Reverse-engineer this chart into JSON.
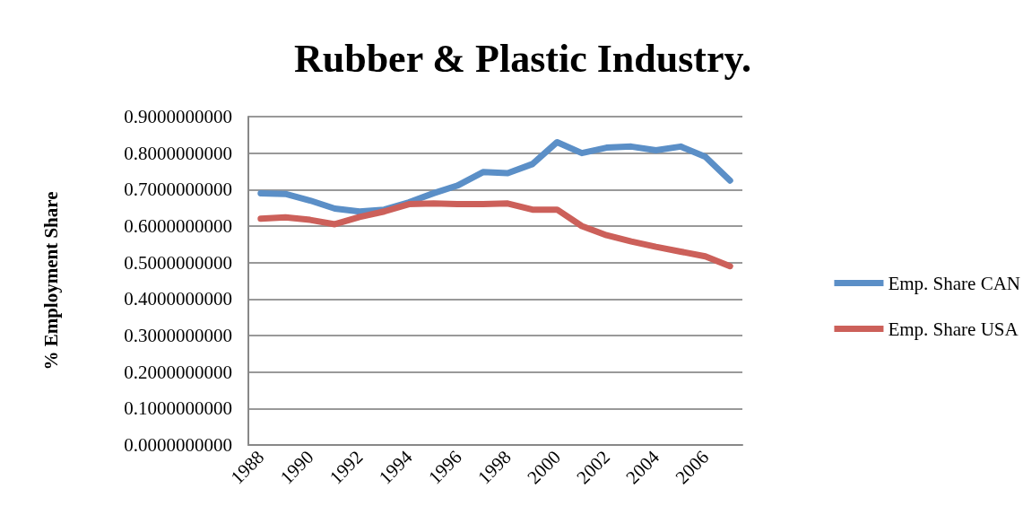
{
  "chart_data": {
    "type": "line",
    "title": "Rubber & Plastic Industry.",
    "ylabel": "% Employment Share",
    "categories": [
      "1988",
      null,
      "1990",
      null,
      "1992",
      null,
      "1994",
      null,
      "1996",
      null,
      "1998",
      null,
      "2000",
      null,
      "2002",
      null,
      "2004",
      null,
      "2006",
      null
    ],
    "series": [
      {
        "name": "Emp. Share CAN",
        "color": "#5b8fc7",
        "values": [
          0.69,
          0.688,
          0.67,
          0.648,
          0.64,
          0.645,
          0.665,
          0.69,
          0.712,
          0.748,
          0.745,
          0.77,
          0.83,
          0.8,
          0.815,
          0.818,
          0.808,
          0.818,
          0.79,
          0.725
        ]
      },
      {
        "name": "Emp. Share USA",
        "color": "#cc605a",
        "values": [
          0.62,
          0.624,
          0.617,
          0.605,
          0.625,
          0.64,
          0.66,
          0.662,
          0.66,
          0.66,
          0.662,
          0.645,
          0.645,
          0.6,
          0.575,
          0.558,
          0.543,
          0.53,
          0.517,
          0.49
        ]
      }
    ],
    "ylim": [
      0,
      0.9
    ],
    "yticks": [
      {
        "value": 0,
        "label": "0.0000000000"
      },
      {
        "value": 0.1,
        "label": "0.1000000000"
      },
      {
        "value": 0.2,
        "label": "0.2000000000"
      },
      {
        "value": 0.3,
        "label": "0.3000000000"
      },
      {
        "value": 0.4,
        "label": "0.4000000000"
      },
      {
        "value": 0.5,
        "label": "0.5000000000"
      },
      {
        "value": 0.6,
        "label": "0.6000000000"
      },
      {
        "value": 0.7,
        "label": "0.7000000000"
      },
      {
        "value": 0.8,
        "label": "0.8000000000"
      },
      {
        "value": 0.9,
        "label": "0.9000000000"
      }
    ],
    "grid": "y",
    "legend": "right",
    "marker": "none",
    "line_style": "solid"
  }
}
